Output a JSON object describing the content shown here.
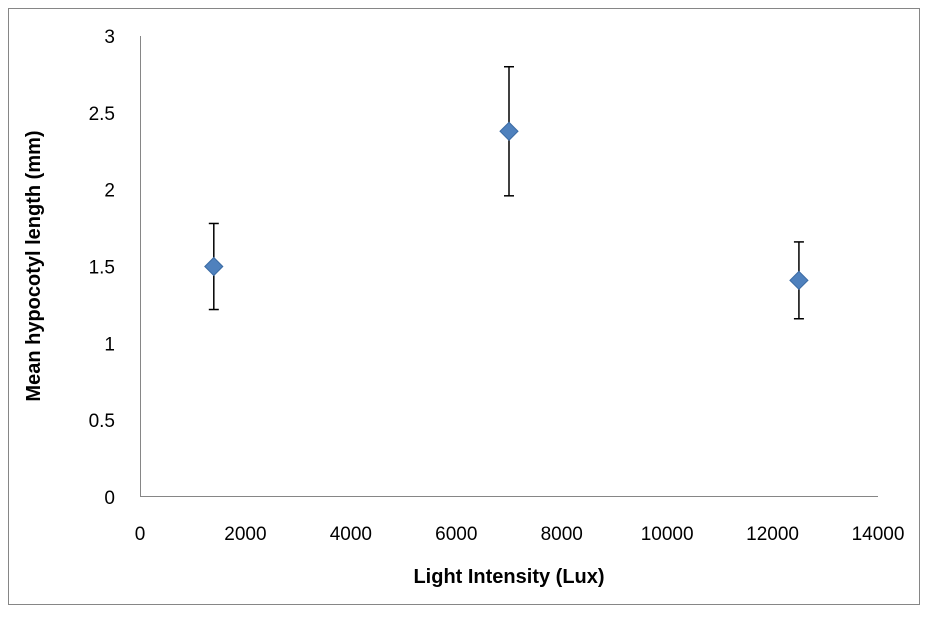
{
  "chart_data": {
    "type": "scatter",
    "title": "",
    "xlabel": "Light Intensity (Lux)",
    "ylabel": "Mean hypocotyl length (mm)",
    "xlim": [
      0,
      14000
    ],
    "ylim": [
      0,
      3
    ],
    "x_ticks": [
      "0",
      "2000",
      "4000",
      "6000",
      "8000",
      "10000",
      "12000",
      "14000"
    ],
    "y_ticks": [
      "0",
      "0.5",
      "1",
      "1.5",
      "2",
      "2.5",
      "3"
    ],
    "grid": false,
    "legend": "none",
    "marker": "diamond",
    "marker_color": "#4f81bd",
    "series": [
      {
        "points": [
          {
            "x": 1400,
            "y": 1.5,
            "err_low": 1.22,
            "err_high": 1.78
          },
          {
            "x": 7000,
            "y": 2.38,
            "err_low": 1.96,
            "err_high": 2.8
          },
          {
            "x": 12500,
            "y": 1.41,
            "err_low": 1.16,
            "err_high": 1.66
          }
        ]
      }
    ]
  }
}
